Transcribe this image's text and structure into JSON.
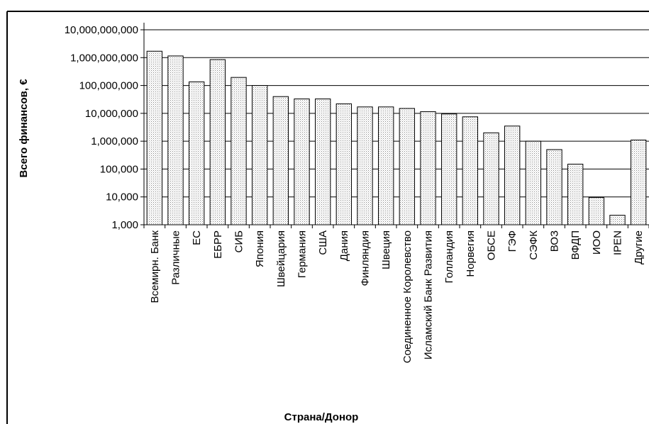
{
  "chart_data": {
    "type": "bar",
    "title": "",
    "xlabel": "Страна/Донор",
    "ylabel": "Всего финансов, €",
    "yscale": "log",
    "ylim": [
      1000,
      10000000000
    ],
    "yticks": [
      1000,
      10000,
      100000,
      1000000,
      10000000,
      100000000,
      1000000000,
      10000000000
    ],
    "ytick_labels": [
      "1,000",
      "10,000",
      "100,000",
      "1,000,000",
      "10,000,000",
      "100,000,000",
      "1,000,000,000",
      "10,000,000,000"
    ],
    "grid": true,
    "legend": "none",
    "bar_fill": "dotted gray",
    "categories": [
      "Всемирн. Банк",
      "Различные",
      "ЕС",
      "ЕБРР",
      "СИБ",
      "Япония",
      "Швейцария",
      "Германия",
      "США",
      "Дания",
      "Финляндия",
      "Швеция",
      "Соединенное Королевство",
      "Исламский Банк Развития",
      "Голландия",
      "Норвегия",
      "ОБСЕ",
      "ГЭФ",
      "СЭФК",
      "ВОЗ",
      "ВФДП",
      "ИОО",
      "IPEN",
      "Другие"
    ],
    "values": [
      1700000000,
      1150000000,
      135000000,
      850000000,
      195000000,
      100000000,
      40000000,
      33000000,
      33000000,
      22000000,
      17000000,
      17000000,
      15000000,
      11500000,
      9500000,
      7500000,
      2000000,
      3500000,
      1000000,
      500000,
      150000,
      9500,
      2200,
      1100000
    ]
  }
}
